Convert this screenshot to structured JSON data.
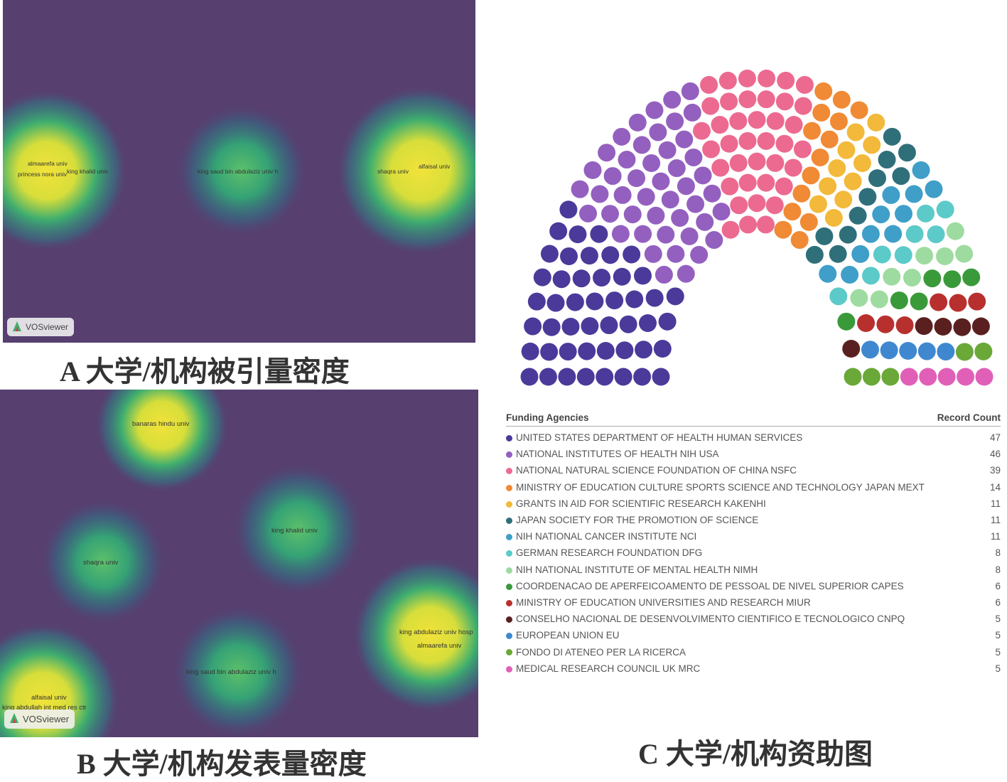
{
  "panel_a": {
    "caption": "A  大学/机构被引量密度",
    "watermark": "VOSviewer",
    "labels": [
      "almaarefa univ",
      "princess nora univ",
      "king khalid univ",
      "king saud bin abdulaziz univ h",
      "shaqra univ",
      "alfaisal univ"
    ]
  },
  "panel_b": {
    "caption": "B  大学/机构发表量密度",
    "watermark": "VOSviewer",
    "labels": [
      "banaras hindu univ",
      "king khalid univ",
      "shaqra univ",
      "king abdulaziz univ hosp",
      "almaarefa univ",
      "king saud bin abdulaziz univ h",
      "alfaisal univ",
      "king abdullah int med res ctr"
    ]
  },
  "panel_c": {
    "caption": "C 大学/机构资助图"
  },
  "colors": {
    "density_low": "#573f70",
    "density_mid": "#3fae6e",
    "density_high": "#f2e23a"
  },
  "chart_data": {
    "type": "parliament",
    "header": {
      "name": "Funding Agencies",
      "count": "Record Count"
    },
    "series": [
      {
        "name": "UNITED STATES DEPARTMENT OF HEALTH HUMAN SERVICES",
        "value": 47,
        "color": "#4b3a9a"
      },
      {
        "name": "NATIONAL INSTITUTES OF HEALTH NIH USA",
        "value": 46,
        "color": "#9460c0"
      },
      {
        "name": "NATIONAL NATURAL SCIENCE FOUNDATION OF CHINA NSFC",
        "value": 39,
        "color": "#ec6a90"
      },
      {
        "name": "MINISTRY OF EDUCATION CULTURE SPORTS SCIENCE AND TECHNOLOGY JAPAN MEXT",
        "value": 14,
        "color": "#f08a35"
      },
      {
        "name": "GRANTS IN AID FOR SCIENTIFIC RESEARCH KAKENHI",
        "value": 11,
        "color": "#f2b93a"
      },
      {
        "name": "JAPAN SOCIETY FOR THE PROMOTION OF SCIENCE",
        "value": 11,
        "color": "#2f6f7a"
      },
      {
        "name": "NIH NATIONAL CANCER INSTITUTE NCI",
        "value": 11,
        "color": "#3f9fc8"
      },
      {
        "name": "GERMAN RESEARCH FOUNDATION DFG",
        "value": 8,
        "color": "#5ccac8"
      },
      {
        "name": "NIH NATIONAL INSTITUTE OF MENTAL HEALTH NIMH",
        "value": 8,
        "color": "#9edba0"
      },
      {
        "name": "COORDENACAO DE APERFEICOAMENTO DE PESSOAL DE NIVEL SUPERIOR CAPES",
        "value": 6,
        "color": "#3a9a3a"
      },
      {
        "name": "MINISTRY OF EDUCATION UNIVERSITIES AND RESEARCH MIUR",
        "value": 6,
        "color": "#b8302e"
      },
      {
        "name": "CONSELHO NACIONAL DE DESENVOLVIMENTO CIENTIFICO E TECNOLOGICO CNPQ",
        "value": 5,
        "color": "#5a2020"
      },
      {
        "name": "EUROPEAN UNION EU",
        "value": 5,
        "color": "#3f88d0"
      },
      {
        "name": "FONDO DI ATENEO PER LA RICERCA",
        "value": 5,
        "color": "#6aa838"
      },
      {
        "name": "MEDICAL RESEARCH COUNCIL UK MRC",
        "value": 5,
        "color": "#e060b8"
      }
    ]
  }
}
